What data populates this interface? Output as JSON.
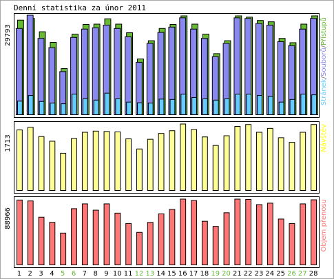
{
  "chart_data": {
    "type": "bar",
    "title": "Denní statistika za únor 2011",
    "categories": [
      "1",
      "2",
      "3",
      "4",
      "5",
      "6",
      "7",
      "8",
      "9",
      "10",
      "11",
      "12",
      "13",
      "14",
      "15",
      "16",
      "17",
      "18",
      "19",
      "20",
      "21",
      "22",
      "23",
      "24",
      "25",
      "26",
      "27",
      "28"
    ],
    "weekend_days": [
      "5",
      "6",
      "12",
      "13",
      "19",
      "20",
      "26",
      "27"
    ],
    "colors": {
      "hits": "#66bb33",
      "files": "#8888ee",
      "pages": "#66ccff",
      "visits": "#ffff99",
      "volume": "#ff7777",
      "day_label": "#000000",
      "weekend_label": "#66bb33",
      "legend_sites": "#ffff00",
      "legend_volume": "#ff7777"
    },
    "panels": [
      {
        "id": "hits-files-pages",
        "y_tick": "29793",
        "ylim": [
          0,
          29793
        ],
        "legend": [
          {
            "label": "Stránek",
            "color": "#66ccff"
          },
          {
            "label": "/",
            "color": "#777777"
          },
          {
            "label": "Souborů",
            "color": "#8888ee"
          },
          {
            "label": "/",
            "color": "#777777"
          },
          {
            "label": "Přístupů",
            "color": "#66bb33"
          }
        ],
        "series": [
          {
            "name": "Přístupů",
            "values": [
              28500,
              29000,
              25000,
              21800,
              13900,
              24300,
              27200,
              27300,
              28900,
              27300,
              24700,
              16800,
              22300,
              26000,
              27200,
              29793,
              27300,
              24300,
              18400,
              22300,
              29793,
              29400,
              28400,
              28000,
              23000,
              21700,
              27300,
              29793
            ]
          },
          {
            "name": "Souborů",
            "values": [
              26000,
              30000,
              23000,
              20200,
              13000,
              23300,
              25800,
              26200,
              27000,
              26000,
              23500,
              15800,
              21500,
              24800,
              26400,
              29200,
              25800,
              23000,
              17500,
              21500,
              29200,
              29000,
              27500,
              27000,
              22000,
              20800,
              25800,
              29000
            ]
          },
          {
            "name": "Stránek",
            "values": [
              4100,
              5800,
              4000,
              3500,
              3300,
              6200,
              4800,
              4400,
              6500,
              4800,
              3800,
              3600,
              3500,
              4700,
              4600,
              6200,
              5200,
              4800,
              4400,
              4800,
              6200,
              6200,
              5800,
              5500,
              3800,
              4600,
              6200,
              6000
            ]
          }
        ]
      },
      {
        "id": "visits",
        "y_tick": "1713",
        "ylim": [
          0,
          1713
        ],
        "legend": [
          {
            "label": "Návštěv",
            "color": "#ffff00"
          }
        ],
        "series": [
          {
            "name": "Návštěv",
            "values": [
              1560,
              1630,
              1390,
              1270,
              960,
              1340,
              1500,
              1530,
              1520,
              1510,
              1330,
              1070,
              1320,
              1470,
              1540,
              1713,
              1570,
              1380,
              1160,
              1410,
              1650,
              1700,
              1500,
              1600,
              1360,
              1240,
              1500,
              1700
            ]
          }
        ]
      },
      {
        "id": "volume",
        "y_tick": "88966",
        "ylim": [
          0,
          88966
        ],
        "legend": [
          {
            "label": "Objem přenosu",
            "color": "#ff7777"
          }
        ],
        "series": [
          {
            "name": "Objem přenosu",
            "values": [
              87700,
              86500,
              64500,
              57500,
              43000,
              76000,
              82500,
              74000,
              82500,
              70000,
              56000,
              44000,
              57500,
              69000,
              75000,
              88966,
              87000,
              59000,
              52000,
              70500,
              88966,
              88500,
              81500,
              83500,
              62000,
              56000,
              82500,
              88000
            ]
          }
        ]
      }
    ]
  }
}
